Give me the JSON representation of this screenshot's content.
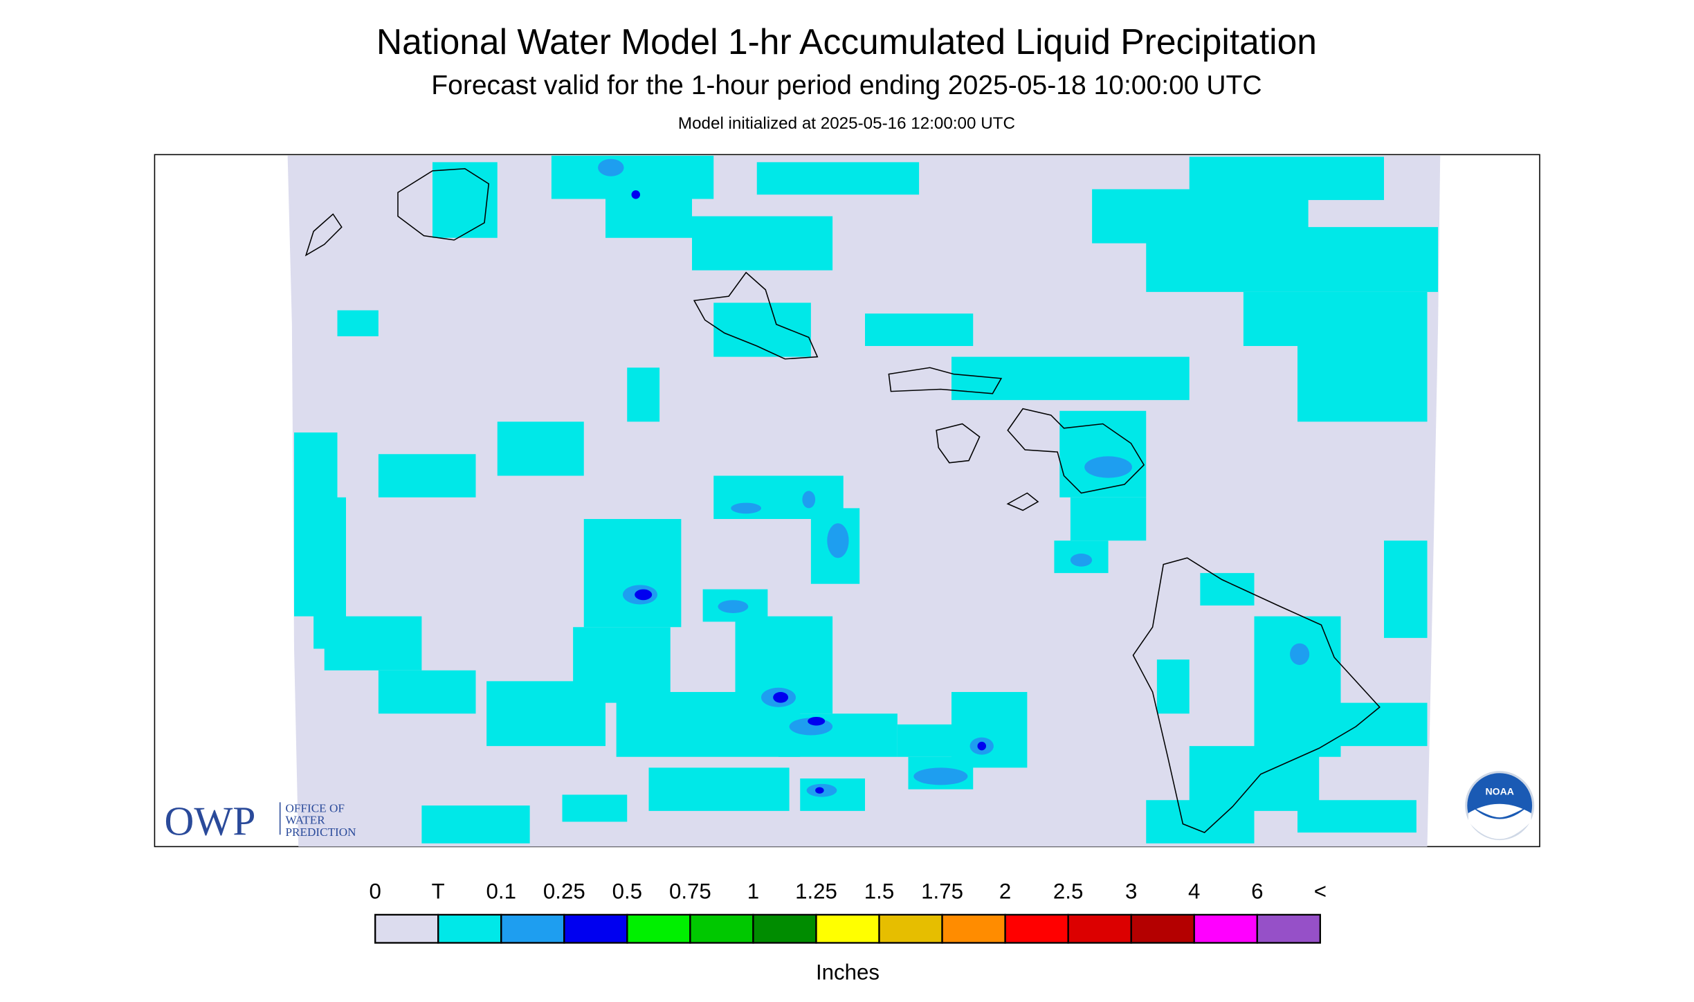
{
  "header": {
    "title": "National Water Model 1-hr Accumulated Liquid Precipitation",
    "subtitle": "Forecast valid for the 1-hour period ending 2025-05-18 10:00:00 UTC",
    "initialized": "Model initialized at 2025-05-16 12:00:00 UTC"
  },
  "map": {
    "logo_owp": "OWP",
    "logo_owp_lines": [
      "OFFICE OF",
      "WATER",
      "PREDICTION"
    ],
    "logo_noaa": "NOAA"
  },
  "legend": {
    "labels": [
      "0",
      "T",
      "0.1",
      "0.25",
      "0.5",
      "0.75",
      "1",
      "1.25",
      "1.5",
      "1.75",
      "2",
      "2.5",
      "3",
      "4",
      "6",
      "<"
    ],
    "colors": [
      "#dcdcee",
      "#00e8e8",
      "#1e9ef0",
      "#0000f0",
      "#00f000",
      "#00c800",
      "#008c00",
      "#ffff00",
      "#e6be00",
      "#ff8c00",
      "#ff0000",
      "#dc0000",
      "#b40000",
      "#ff00ff",
      "#9650c8"
    ],
    "unit": "Inches"
  }
}
